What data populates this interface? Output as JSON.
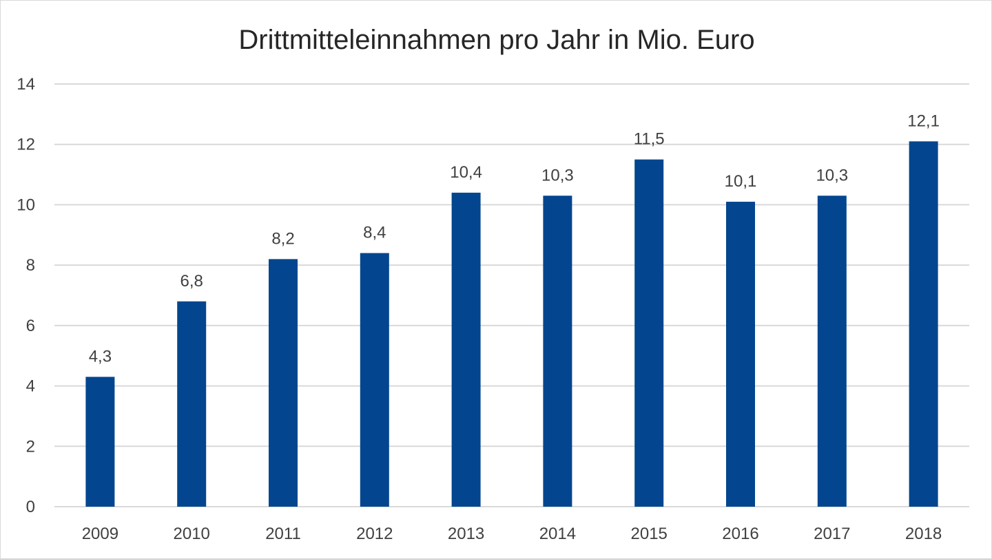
{
  "chart_data": {
    "type": "bar",
    "title": "Drittmitteleinnahmen pro Jahr in Mio. Euro",
    "xlabel": "",
    "ylabel": "",
    "categories": [
      "2009",
      "2010",
      "2011",
      "2012",
      "2013",
      "2014",
      "2015",
      "2016",
      "2017",
      "2018"
    ],
    "values": [
      4.3,
      6.8,
      8.2,
      8.4,
      10.4,
      10.3,
      11.5,
      10.1,
      10.3,
      12.1
    ],
    "data_labels": [
      "4,3",
      "6,8",
      "8,2",
      "8,4",
      "10,4",
      "10,3",
      "11,5",
      "10,1",
      "10,3",
      "12,1"
    ],
    "ylim": [
      0,
      14
    ],
    "yticks": [
      "0",
      "2",
      "4",
      "6",
      "8",
      "10",
      "12",
      "14"
    ],
    "grid": true,
    "legend": "none",
    "bar_color": "#03468F"
  }
}
